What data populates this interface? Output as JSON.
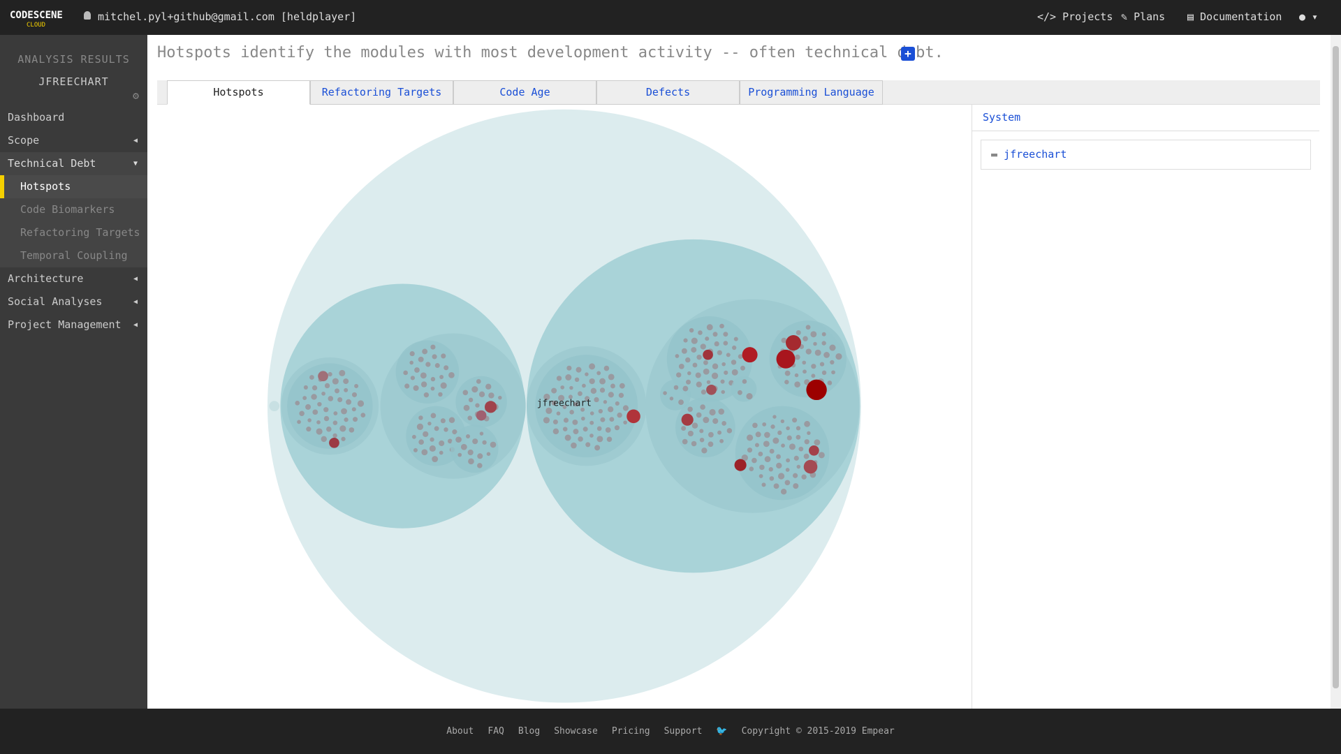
{
  "brand": {
    "name": "CODESCENE",
    "sub": "CLOUD"
  },
  "user": "mitchel.pyl+github@gmail.com [heldplayer]",
  "nav": [
    "Projects",
    "Plans",
    "Documentation"
  ],
  "sidebar": {
    "heading": "ANALYSIS RESULTS",
    "project": "JFREECHART",
    "items": [
      {
        "label": "Dashboard"
      },
      {
        "label": "Scope"
      },
      {
        "label": "Technical Debt",
        "children": [
          "Hotspots",
          "Code Biomarkers",
          "Refactoring Targets",
          "Temporal Coupling"
        ]
      },
      {
        "label": "Architecture"
      },
      {
        "label": "Social Analyses"
      },
      {
        "label": "Project Management"
      }
    ]
  },
  "header": "Hotspots identify the modules with most development activity -- often technical debt.",
  "tabs": [
    "Hotspots",
    "Refactoring Targets",
    "Code Age",
    "Defects",
    "Programming Language"
  ],
  "chart": {
    "root_label": "jfreechart"
  },
  "panel": {
    "title": "System",
    "item": "jfreechart"
  },
  "footer": {
    "links": [
      "About",
      "FAQ",
      "Blog",
      "Showcase",
      "Pricing",
      "Support"
    ],
    "copyright": "Copyright © 2015-2019 Empear"
  }
}
